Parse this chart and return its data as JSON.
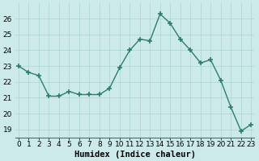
{
  "x": [
    0,
    1,
    2,
    3,
    4,
    5,
    6,
    7,
    8,
    9,
    10,
    11,
    12,
    13,
    14,
    15,
    16,
    17,
    18,
    19,
    20,
    21,
    22,
    23
  ],
  "y": [
    23.0,
    22.6,
    22.4,
    21.1,
    21.1,
    21.4,
    21.2,
    21.2,
    21.2,
    21.6,
    22.9,
    24.0,
    24.7,
    24.6,
    26.3,
    25.7,
    24.7,
    24.0,
    23.2,
    23.4,
    22.1,
    20.4,
    18.9,
    19.3
  ],
  "line_color": "#2d7d6e",
  "marker": "+",
  "markersize": 4,
  "markeredgewidth": 1.2,
  "linewidth": 1.0,
  "bg_color": "#cceaea",
  "grid_color": "#aad4d4",
  "xlabel": "Humidex (Indice chaleur)",
  "xlabel_fontsize": 7.5,
  "tick_fontsize": 6.5,
  "ylim": [
    18.5,
    27.0
  ],
  "yticks": [
    19,
    20,
    21,
    22,
    23,
    24,
    25,
    26
  ],
  "xticks": [
    0,
    1,
    2,
    3,
    4,
    5,
    6,
    7,
    8,
    9,
    10,
    11,
    12,
    13,
    14,
    15,
    16,
    17,
    18,
    19,
    20,
    21,
    22,
    23
  ],
  "xlim": [
    -0.3,
    23.3
  ]
}
